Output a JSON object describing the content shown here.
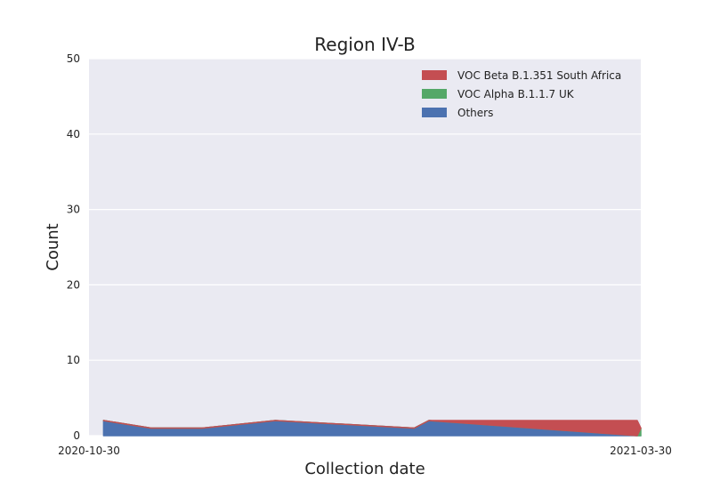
{
  "chart_data": {
    "type": "area",
    "stacked": true,
    "title": "Region IV-B",
    "xlabel": "Collection date",
    "ylabel": "Count",
    "ylim": [
      0,
      50
    ],
    "yticks": [
      0,
      10,
      20,
      30,
      40,
      50
    ],
    "xlim": [
      "2020-10-30",
      "2021-03-30"
    ],
    "xtick_labels": [
      "2020-10-30",
      "2021-03-30"
    ],
    "grid": true,
    "legend_position": "top-right",
    "x": [
      "2020-11-03",
      "2020-11-16",
      "2020-11-30",
      "2020-12-20",
      "2021-01-27",
      "2021-01-31",
      "2021-03-29",
      "2021-03-30"
    ],
    "series": [
      {
        "name": "Others",
        "color": "#4c72b0",
        "values": [
          2,
          1,
          1,
          2,
          1,
          2,
          0,
          0
        ]
      },
      {
        "name": "VOC Alpha B.1.1.7 UK",
        "color": "#55a868",
        "values": [
          0,
          0,
          0,
          0,
          0,
          0,
          0,
          1
        ]
      },
      {
        "name": "VOC Beta B.1.351 South Africa",
        "color": "#c44e52",
        "values": [
          0,
          0,
          0,
          0,
          0,
          0,
          2,
          0
        ]
      }
    ],
    "legend_order": [
      "VOC Beta B.1.351 South Africa",
      "VOC Alpha B.1.1.7 UK",
      "Others"
    ]
  }
}
